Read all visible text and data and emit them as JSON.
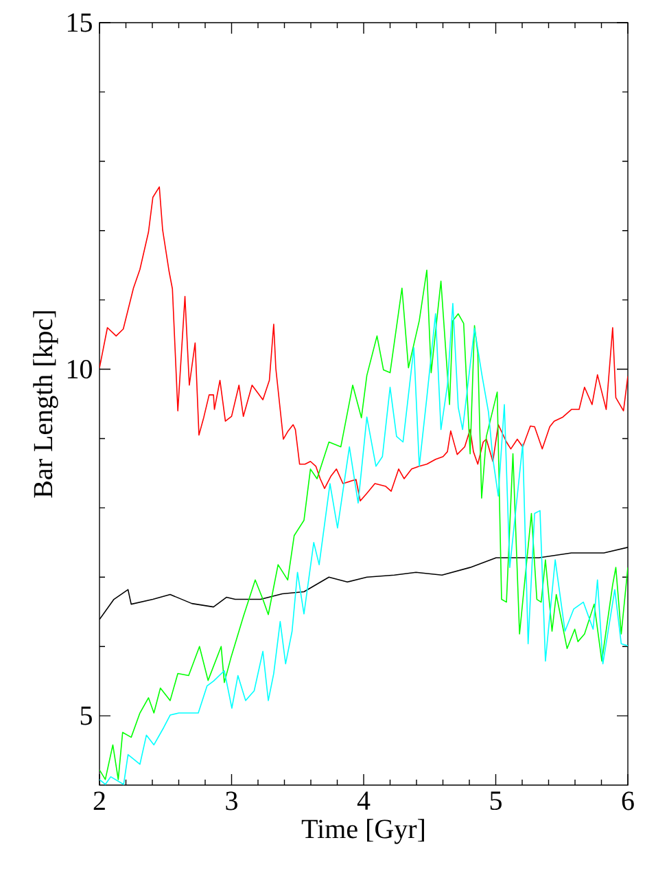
{
  "chart_data": {
    "type": "line",
    "xlabel": "Time [Gyr]",
    "ylabel": "Bar Length [kpc]",
    "xlim": [
      2,
      6
    ],
    "xticks": [
      2,
      3,
      4,
      5,
      6
    ],
    "ylim": [
      4,
      15
    ],
    "yticks": [
      5,
      10,
      15
    ],
    "series": [
      {
        "color": "#ff0000",
        "x": [
          2.0,
          2.06,
          2.126,
          2.18,
          2.257,
          2.306,
          2.371,
          2.404,
          2.453,
          2.478,
          2.527,
          2.552,
          2.593,
          2.647,
          2.68,
          2.724,
          2.753,
          2.79,
          2.83,
          2.863,
          2.87,
          2.912,
          2.953,
          3.0,
          3.056,
          3.089,
          3.155,
          3.237,
          3.286,
          3.319,
          3.335,
          3.392,
          3.425,
          3.466,
          3.483,
          3.515,
          3.556,
          3.597,
          3.638,
          3.671,
          3.704,
          3.753,
          3.794,
          3.843,
          3.942,
          3.974,
          4.024,
          4.085,
          4.167,
          4.208,
          4.265,
          4.306,
          4.363,
          4.421,
          4.478,
          4.544,
          4.601,
          4.634,
          4.659,
          4.708,
          4.765,
          4.806,
          4.831,
          4.864,
          4.905,
          4.929,
          4.978,
          5.019,
          5.081,
          5.114,
          5.163,
          5.204,
          5.262,
          5.294,
          5.352,
          5.409,
          5.442,
          5.508,
          5.573,
          5.631,
          5.672,
          5.729,
          5.77,
          5.836,
          5.885,
          5.909,
          5.967,
          6.0
        ],
        "values": [
          10.02,
          10.6,
          10.48,
          10.58,
          11.17,
          11.44,
          11.98,
          12.48,
          12.63,
          12.01,
          11.41,
          11.16,
          9.4,
          11.05,
          9.77,
          10.38,
          9.05,
          9.31,
          9.63,
          9.63,
          9.42,
          9.84,
          9.25,
          9.32,
          9.77,
          9.32,
          9.77,
          9.56,
          9.84,
          10.65,
          10.01,
          8.99,
          9.1,
          9.2,
          9.13,
          8.63,
          8.63,
          8.67,
          8.6,
          8.42,
          8.28,
          8.46,
          8.56,
          8.35,
          8.41,
          8.1,
          8.21,
          8.35,
          8.31,
          8.24,
          8.56,
          8.42,
          8.56,
          8.6,
          8.63,
          8.7,
          8.74,
          8.81,
          9.11,
          8.77,
          8.88,
          9.13,
          8.81,
          8.63,
          8.95,
          8.99,
          8.67,
          9.2,
          8.95,
          8.85,
          8.99,
          8.88,
          9.18,
          9.17,
          8.85,
          9.17,
          9.25,
          9.31,
          9.42,
          9.42,
          9.74,
          9.49,
          9.92,
          9.42,
          10.6,
          9.59,
          9.4,
          9.9
        ]
      },
      {
        "color": "#000000",
        "x": [
          2.0,
          2.109,
          2.216,
          2.24,
          2.404,
          2.535,
          2.699,
          2.863,
          2.961,
          3.027,
          3.22,
          3.384,
          3.548,
          3.737,
          3.876,
          4.024,
          4.232,
          4.396,
          4.593,
          4.806,
          5.003,
          5.081,
          5.327,
          5.573,
          5.819,
          6.0
        ],
        "values": [
          6.39,
          6.68,
          6.82,
          6.61,
          6.68,
          6.75,
          6.62,
          6.57,
          6.71,
          6.68,
          6.68,
          6.76,
          6.79,
          7.0,
          6.93,
          7.0,
          7.03,
          7.07,
          7.03,
          7.14,
          7.28,
          7.28,
          7.28,
          7.35,
          7.35,
          7.43
        ]
      },
      {
        "color": "#00ff00",
        "x": [
          2.0,
          2.044,
          2.101,
          2.142,
          2.175,
          2.24,
          2.306,
          2.371,
          2.412,
          2.461,
          2.535,
          2.593,
          2.675,
          2.724,
          2.757,
          2.822,
          2.921,
          2.945,
          2.994,
          3.089,
          3.179,
          3.237,
          3.278,
          3.352,
          3.425,
          3.474,
          3.548,
          3.597,
          3.647,
          3.737,
          3.827,
          3.917,
          3.983,
          4.024,
          4.101,
          4.15,
          4.2,
          4.29,
          4.339,
          4.421,
          4.478,
          4.511,
          4.585,
          4.65,
          4.675,
          4.716,
          4.757,
          4.806,
          4.839,
          4.864,
          4.893,
          4.929,
          5.011,
          5.044,
          5.081,
          5.13,
          5.18,
          5.27,
          5.311,
          5.344,
          5.376,
          5.426,
          5.458,
          5.54,
          5.598,
          5.622,
          5.672,
          5.745,
          5.803,
          5.885,
          5.909,
          5.95,
          6.0
        ],
        "values": [
          4.22,
          4.08,
          4.58,
          4.08,
          4.76,
          4.69,
          5.04,
          5.26,
          5.04,
          5.4,
          5.22,
          5.61,
          5.58,
          5.83,
          6.0,
          5.51,
          6.0,
          5.48,
          5.83,
          6.43,
          6.96,
          6.68,
          6.46,
          7.18,
          6.96,
          7.6,
          7.82,
          8.56,
          8.42,
          8.95,
          8.88,
          9.77,
          9.3,
          9.91,
          10.48,
          9.99,
          9.95,
          11.17,
          10.02,
          10.7,
          11.43,
          9.95,
          11.27,
          9.49,
          10.7,
          10.8,
          10.66,
          8.78,
          10.63,
          10.23,
          8.14,
          9.03,
          9.67,
          6.68,
          6.64,
          8.78,
          6.18,
          7.92,
          6.68,
          6.64,
          7.25,
          6.22,
          6.75,
          5.97,
          6.25,
          6.07,
          6.18,
          6.61,
          5.79,
          6.89,
          7.14,
          6.18,
          7.14
        ]
      },
      {
        "color": "#00ffff",
        "x": [
          2.0,
          2.044,
          2.085,
          2.183,
          2.216,
          2.306,
          2.355,
          2.412,
          2.486,
          2.535,
          2.601,
          2.65,
          2.748,
          2.814,
          2.863,
          2.945,
          3.002,
          3.048,
          3.106,
          3.171,
          3.237,
          3.278,
          3.319,
          3.368,
          3.409,
          3.458,
          3.499,
          3.548,
          3.622,
          3.663,
          3.745,
          3.802,
          3.892,
          3.958,
          4.024,
          4.093,
          4.142,
          4.2,
          4.249,
          4.298,
          4.38,
          4.421,
          4.478,
          4.544,
          4.585,
          4.634,
          4.675,
          4.716,
          4.749,
          4.839,
          4.896,
          4.945,
          4.978,
          5.019,
          5.065,
          5.106,
          5.204,
          5.245,
          5.294,
          5.335,
          5.376,
          5.45,
          5.524,
          5.59,
          5.663,
          5.737,
          5.77,
          5.811,
          5.901,
          5.95,
          6.0
        ],
        "values": [
          4.08,
          4.01,
          4.12,
          4.01,
          4.44,
          4.3,
          4.72,
          4.58,
          4.83,
          5.01,
          5.04,
          5.04,
          5.04,
          5.43,
          5.5,
          5.65,
          5.11,
          5.58,
          5.22,
          5.36,
          5.93,
          5.22,
          5.61,
          6.36,
          5.75,
          6.22,
          7.07,
          6.47,
          7.5,
          7.18,
          8.35,
          7.71,
          8.88,
          8.07,
          9.31,
          8.6,
          8.74,
          9.74,
          9.03,
          8.95,
          10.31,
          8.6,
          9.59,
          10.8,
          9.13,
          9.77,
          10.95,
          9.45,
          9.13,
          10.59,
          9.91,
          9.38,
          8.71,
          8.17,
          9.49,
          7.14,
          8.92,
          6.04,
          7.92,
          7.96,
          5.79,
          7.25,
          6.22,
          6.54,
          6.64,
          6.25,
          6.96,
          5.75,
          6.82,
          6.04,
          6.01
        ]
      }
    ]
  }
}
